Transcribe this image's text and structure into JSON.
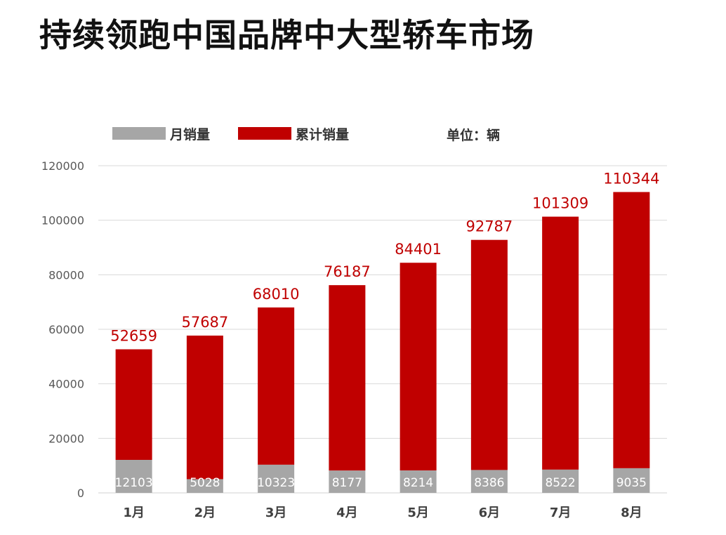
{
  "title": "持续领跑中国品牌中大型轿车市场",
  "unit_label": "单位：辆",
  "colors": {
    "monthly": "#a6a6a6",
    "cumulative": "#c00000",
    "grid": "#d9d9d9",
    "axis_text": "#595959",
    "category_text": "#404040"
  },
  "chart_data": {
    "type": "bar",
    "stacked": true,
    "categories": [
      "1月",
      "2月",
      "3月",
      "4月",
      "5月",
      "6月",
      "7月",
      "8月"
    ],
    "series": [
      {
        "name": "月销量",
        "values": [
          12103,
          5028,
          10323,
          8177,
          8214,
          8386,
          8522,
          9035
        ]
      },
      {
        "name": "累计销量",
        "values": [
          52659,
          57687,
          68010,
          76187,
          84401,
          92787,
          101309,
          110344
        ]
      }
    ],
    "yticks": [
      0,
      20000,
      40000,
      60000,
      80000,
      100000,
      120000
    ],
    "ylim": [
      0,
      120000
    ],
    "grid": true,
    "legend_position": "top-left"
  }
}
